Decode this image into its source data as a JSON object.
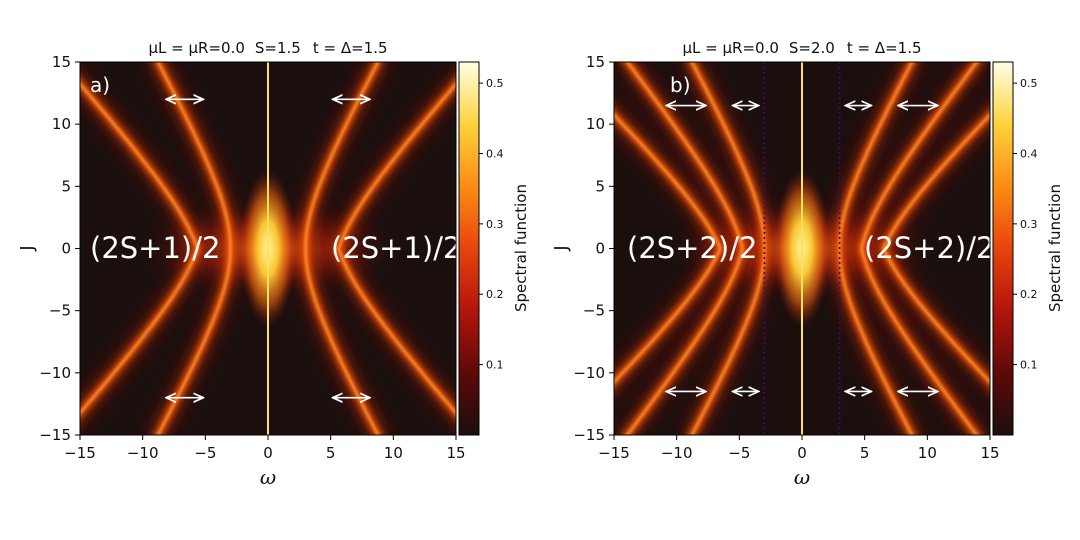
{
  "colors": {
    "background": "#1a0f0d",
    "cmap": [
      "#1a0f0d",
      "#5e0a08",
      "#b2140c",
      "#e8440e",
      "#fb8d14",
      "#ffd23c",
      "#ffffe6"
    ]
  },
  "chart_data": [
    {
      "type": "heatmap",
      "panel_label": "a)",
      "title_mu": "μL = μR=0.0",
      "title_s": "S=1.5",
      "title_t": "t = Δ=1.5",
      "S": 1.5,
      "xlabel": "ω",
      "ylabel": "J",
      "xlim": [
        -15,
        15
      ],
      "ylim": [
        -15,
        15
      ],
      "xticks": [
        -15,
        -10,
        -5,
        0,
        5,
        10,
        15
      ],
      "yticks": [
        -15,
        -10,
        -5,
        0,
        5,
        10,
        15
      ],
      "annotation_left": "(2S+1)/2",
      "annotation_right": "(2S+1)/2",
      "branch_offsets": [
        0.0,
        7.5
      ],
      "center_line": 0,
      "dotted_lines": [],
      "arrows": [
        {
          "x1": -8.3,
          "x2": -5.0,
          "y": 12
        },
        {
          "x1": 5.0,
          "x2": 8.3,
          "y": 12
        },
        {
          "x1": -8.3,
          "x2": -5.0,
          "y": -12
        },
        {
          "x1": 5.0,
          "x2": 8.3,
          "y": -12
        }
      ],
      "colorbar": {
        "label": "Spectral function",
        "ticks": [
          0.1,
          0.2,
          0.3,
          0.4,
          0.5
        ],
        "range": [
          0.0,
          0.53
        ]
      }
    },
    {
      "type": "heatmap",
      "panel_label": "b)",
      "title_mu": "μL = μR=0.0",
      "title_s": "S=2.0",
      "title_t": "t = Δ=1.5",
      "S": 2.0,
      "xlabel": "ω",
      "ylabel": "J",
      "xlim": [
        -15,
        15
      ],
      "ylim": [
        -15,
        15
      ],
      "xticks": [
        -15,
        -10,
        -5,
        0,
        5,
        10,
        15
      ],
      "yticks": [
        -15,
        -10,
        -5,
        0,
        5,
        10,
        15
      ],
      "annotation_left": "(2S+2)/2",
      "annotation_right": "(2S+2)/2",
      "branch_offsets": [
        0.0,
        5.0,
        10.0
      ],
      "center_line": 0,
      "dotted_lines": [
        -3,
        3
      ],
      "arrows": [
        {
          "x1": -11.0,
          "x2": -7.5,
          "y": 11.5
        },
        {
          "x1": -5.7,
          "x2": -3.3,
          "y": 11.5
        },
        {
          "x1": 3.3,
          "x2": 5.7,
          "y": 11.5
        },
        {
          "x1": 7.5,
          "x2": 11.0,
          "y": 11.5
        },
        {
          "x1": -11.0,
          "x2": -7.5,
          "y": -11.5
        },
        {
          "x1": -5.7,
          "x2": -3.3,
          "y": -11.5
        },
        {
          "x1": 3.3,
          "x2": 5.7,
          "y": -11.5
        },
        {
          "x1": 7.5,
          "x2": 11.0,
          "y": -11.5
        }
      ],
      "colorbar": {
        "label": "Spectral function",
        "ticks": [
          0.1,
          0.2,
          0.3,
          0.4,
          0.5
        ],
        "range": [
          0.0,
          0.53
        ]
      }
    }
  ]
}
